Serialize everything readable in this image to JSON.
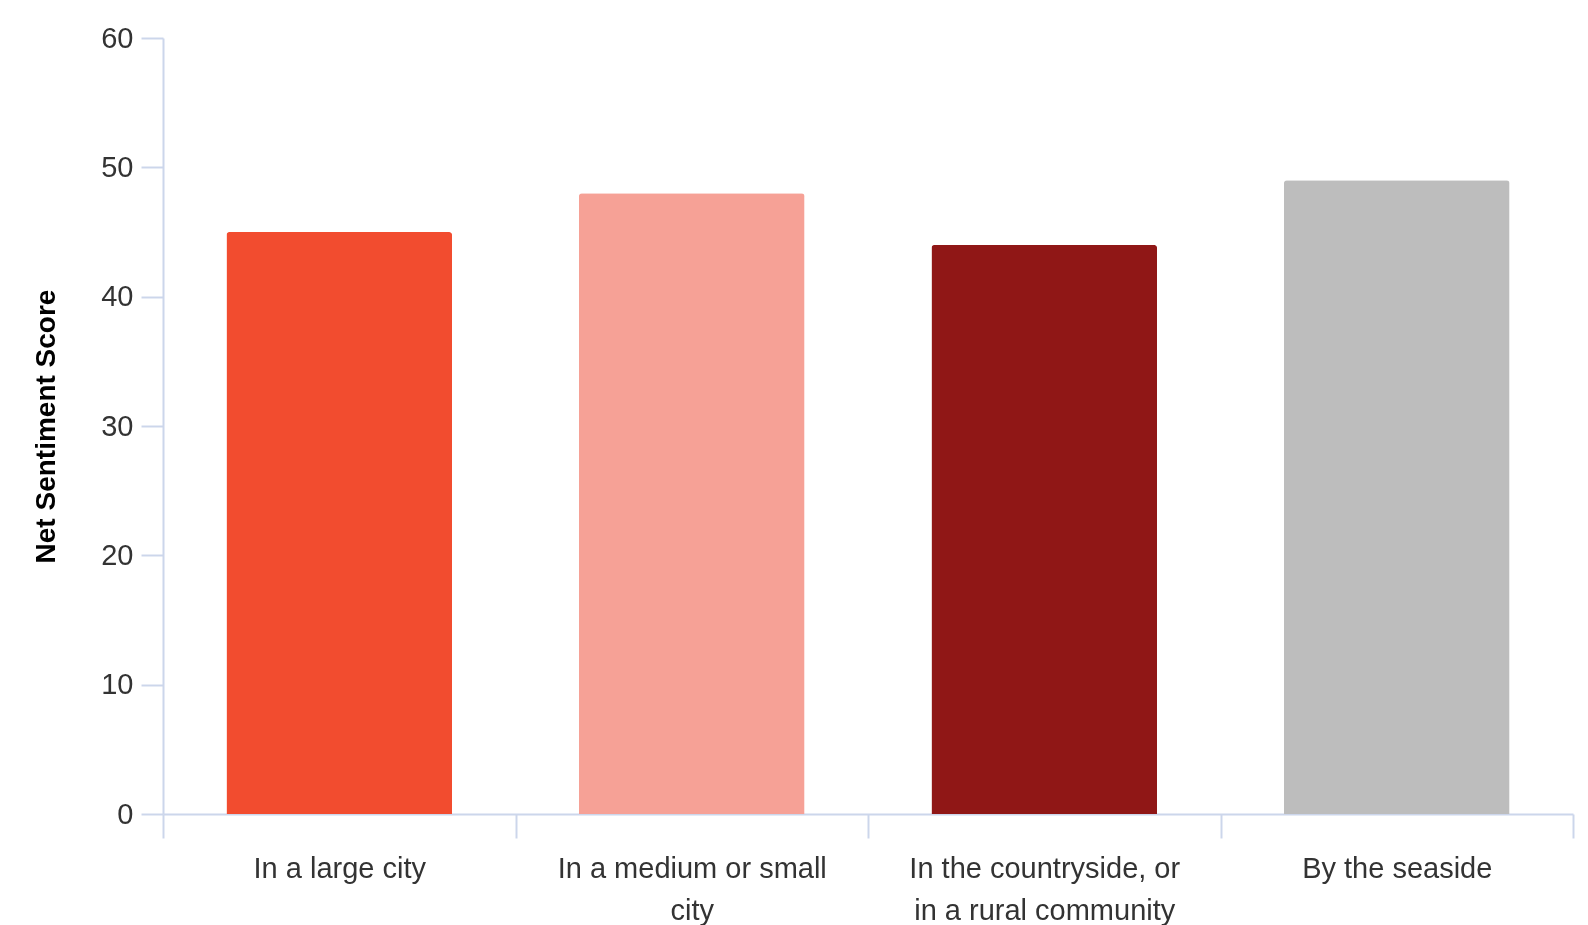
{
  "chart_data": {
    "type": "bar",
    "ylabel": "Net Sentiment Score",
    "categories": [
      "In a large city",
      "In a medium or small city",
      "In the countryside, or in a rural community",
      "By the seaside"
    ],
    "values": [
      45,
      48,
      44,
      49
    ],
    "colors": [
      "#f24c2f",
      "#f6a196",
      "#901716",
      "#bdbdbd"
    ],
    "ylim": [
      0,
      60
    ],
    "yticks": [
      0,
      10,
      20,
      30,
      40,
      50,
      60
    ],
    "grid": false
  }
}
